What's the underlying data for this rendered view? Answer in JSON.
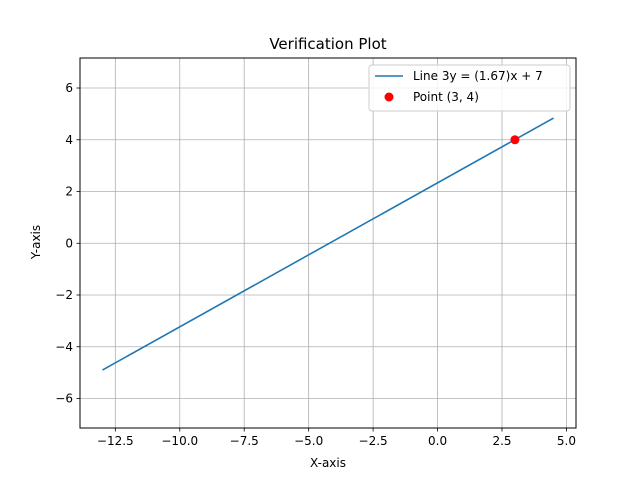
{
  "chart_data": {
    "type": "line",
    "title": "Verification Plot",
    "xlabel": "X-axis",
    "ylabel": "Y-axis",
    "xlim": [
      -13.87,
      5.37
    ],
    "ylim": [
      -7.14,
      7.16
    ],
    "x_ticks": [
      -12.5,
      -10.0,
      -7.5,
      -5.0,
      -2.5,
      0.0,
      2.5,
      5.0
    ],
    "x_tick_labels": [
      "−12.5",
      "−10.0",
      "−7.5",
      "−5.0",
      "−2.5",
      "0.0",
      "2.5",
      "5.0"
    ],
    "y_ticks": [
      -6,
      -4,
      -2,
      0,
      2,
      4,
      6
    ],
    "y_tick_labels": [
      "−6",
      "−4",
      "−2",
      "0",
      "2",
      "4",
      "6"
    ],
    "grid": true,
    "legend_position": "top-right",
    "series": [
      {
        "name": "Line 3y = (1.67)x + 7",
        "kind": "line",
        "color": "#1f77b4",
        "x": [
          -13.0,
          4.5
        ],
        "y": [
          -4.9,
          4.84
        ]
      },
      {
        "name": "Point (3, 4)",
        "kind": "point",
        "color": "#ff0000",
        "x": [
          3
        ],
        "y": [
          4
        ]
      }
    ]
  }
}
